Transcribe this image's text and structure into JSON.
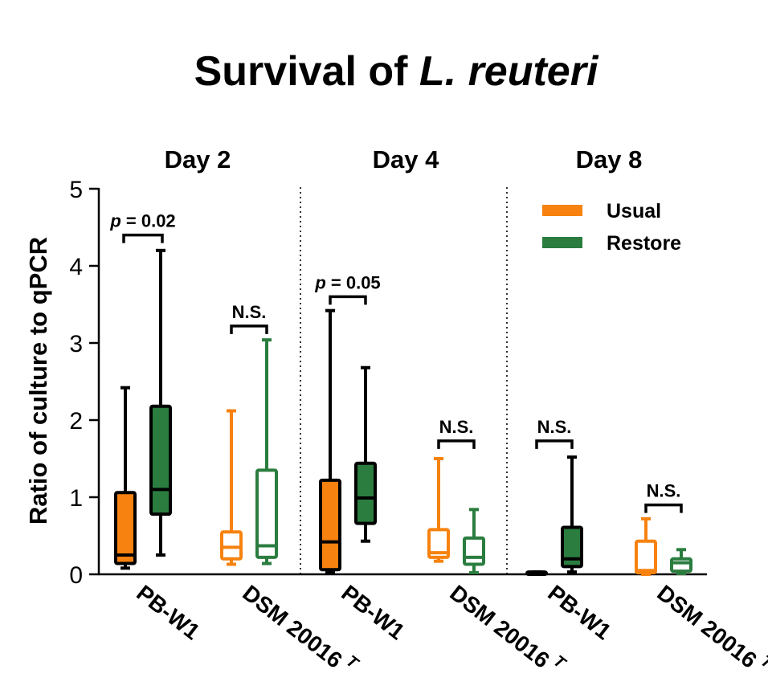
{
  "chart_data": {
    "type": "box",
    "title_main": "Survival of ",
    "title_italic": "L. reuteri",
    "ylabel": "Ratio of culture to qPCR",
    "ylim": [
      0,
      5
    ],
    "yticks": [
      "0",
      "1",
      "2",
      "3",
      "4",
      "5"
    ],
    "groups": [
      "Day 2",
      "Day 4",
      "Day 8"
    ],
    "categories": [
      "PB-W1",
      "DSM 20016",
      "PB-W1",
      "DSM 20016",
      "PB-W1",
      "DSM 20016"
    ],
    "category_superscript": "T",
    "series": [
      {
        "name": "Usual",
        "color": "#F7820F",
        "boxes": [
          {
            "group": "Day 2",
            "category": "PB-W1",
            "min": 0.08,
            "q1": 0.14,
            "median": 0.25,
            "q3": 1.06,
            "max": 2.42,
            "filled": true
          },
          {
            "group": "Day 2",
            "category": "DSM 20016",
            "min": 0.13,
            "q1": 0.2,
            "median": 0.35,
            "q3": 0.55,
            "max": 2.12,
            "filled": false
          },
          {
            "group": "Day 4",
            "category": "PB-W1",
            "min": 0.02,
            "q1": 0.06,
            "median": 0.42,
            "q3": 1.22,
            "max": 3.42,
            "filled": true
          },
          {
            "group": "Day 4",
            "category": "DSM 20016",
            "min": 0.17,
            "q1": 0.22,
            "median": 0.28,
            "q3": 0.58,
            "max": 1.5,
            "filled": false
          },
          {
            "group": "Day 8",
            "category": "PB-W1",
            "min": 0.0,
            "q1": 0.0,
            "median": 0.02,
            "q3": 0.03,
            "max": 0.03,
            "filled": true
          },
          {
            "group": "Day 8",
            "category": "DSM 20016",
            "min": 0.0,
            "q1": 0.02,
            "median": 0.05,
            "q3": 0.43,
            "max": 0.72,
            "filled": false
          }
        ]
      },
      {
        "name": "Restore",
        "color": "#2A7D3F",
        "boxes": [
          {
            "group": "Day 2",
            "category": "PB-W1",
            "min": 0.25,
            "q1": 0.78,
            "median": 1.1,
            "q3": 2.18,
            "max": 4.2,
            "filled": true
          },
          {
            "group": "Day 2",
            "category": "DSM 20016",
            "min": 0.14,
            "q1": 0.22,
            "median": 0.37,
            "q3": 1.35,
            "max": 3.04,
            "filled": false
          },
          {
            "group": "Day 4",
            "category": "PB-W1",
            "min": 0.43,
            "q1": 0.66,
            "median": 0.99,
            "q3": 1.44,
            "max": 2.68,
            "filled": true
          },
          {
            "group": "Day 4",
            "category": "DSM 20016",
            "min": 0.02,
            "q1": 0.13,
            "median": 0.22,
            "q3": 0.47,
            "max": 0.84,
            "filled": false
          },
          {
            "group": "Day 8",
            "category": "PB-W1",
            "min": 0.03,
            "q1": 0.1,
            "median": 0.2,
            "q3": 0.61,
            "max": 1.52,
            "filled": true
          },
          {
            "group": "Day 8",
            "category": "DSM 20016",
            "min": 0.01,
            "q1": 0.04,
            "median": 0.15,
            "q3": 0.2,
            "max": 0.32,
            "filled": false
          }
        ]
      }
    ],
    "annotations": [
      {
        "group": "Day 2",
        "category": "PB-W1",
        "p_prefix": "p",
        "label": " = 0.02",
        "y": 4.4
      },
      {
        "group": "Day 2",
        "category": "DSM 20016",
        "label": "N.S.",
        "y": 3.22
      },
      {
        "group": "Day 4",
        "category": "PB-W1",
        "p_prefix": "p",
        "label": " = 0.05",
        "y": 3.6
      },
      {
        "group": "Day 4",
        "category": "DSM 20016",
        "label": "N.S.",
        "y": 1.73
      },
      {
        "group": "Day 8",
        "category": "PB-W1",
        "label": "N.S.",
        "y": 1.73
      },
      {
        "group": "Day 8",
        "category": "DSM 20016",
        "label": "N.S.",
        "y": 0.9
      }
    ],
    "legend": {
      "position": "top-right",
      "entries": [
        "Usual",
        "Restore"
      ]
    },
    "grid": false
  }
}
